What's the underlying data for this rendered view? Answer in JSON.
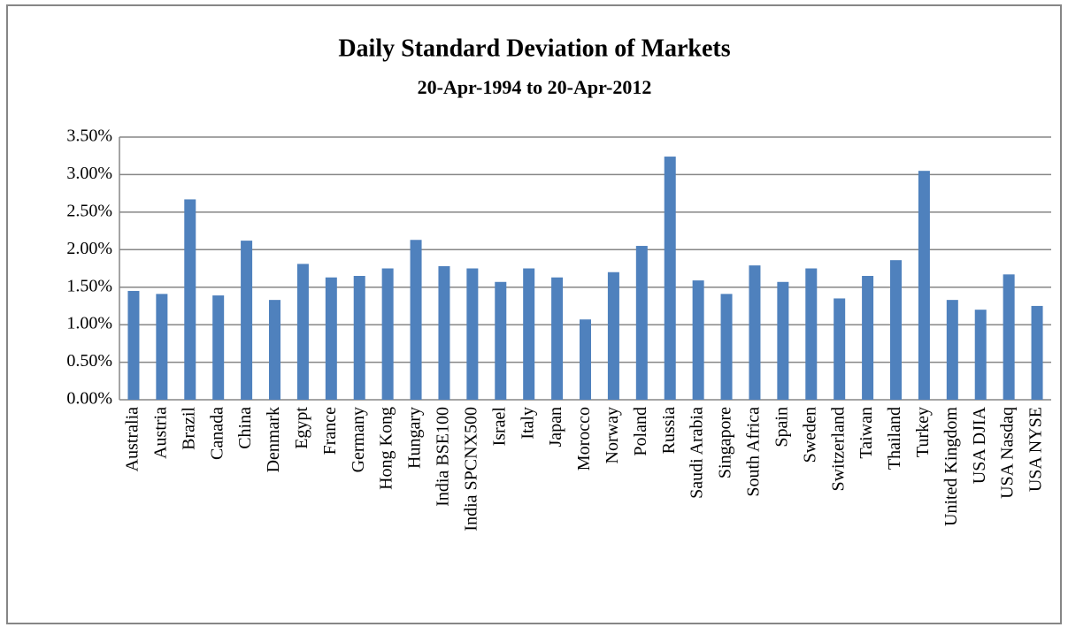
{
  "chart_data": {
    "type": "bar",
    "title": "Daily Standard Deviation of Markets",
    "subtitle": "20-Apr-1994 to 20-Apr-2012",
    "categories": [
      "Australia",
      "Austria",
      "Brazil",
      "Canada",
      "China",
      "Denmark",
      "Egypt",
      "France",
      "Germany",
      "Hong Kong",
      "Hungary",
      "India BSE100",
      "India SPCNX500",
      "Israel",
      "Italy",
      "Japan",
      "Morocco",
      "Norway",
      "Poland",
      "Russia",
      "Saudi Arabia",
      "Singapore",
      "South Africa",
      "Spain",
      "Sweden",
      "Switzerland",
      "Taiwan",
      "Thailand",
      "Turkey",
      "United Kingdom",
      "USA DJIA",
      "USA Nasdaq",
      "USA NYSE"
    ],
    "values": [
      1.45,
      1.41,
      2.67,
      1.39,
      2.12,
      1.33,
      1.81,
      1.63,
      1.65,
      1.75,
      2.13,
      1.78,
      1.75,
      1.57,
      1.75,
      1.63,
      1.07,
      1.7,
      2.05,
      3.24,
      1.59,
      1.41,
      1.79,
      1.57,
      1.75,
      1.35,
      1.65,
      1.86,
      3.05,
      1.33,
      1.2,
      1.67,
      1.25
    ],
    "color": "#4f81bd",
    "ylim": [
      0,
      3.5
    ],
    "yticks": [
      {
        "value": 0,
        "label": "0.00%"
      },
      {
        "value": 0.5,
        "label": "0.50%"
      },
      {
        "value": 1,
        "label": "1.00%"
      },
      {
        "value": 1.5,
        "label": "1.50%"
      },
      {
        "value": 2,
        "label": "2.00%"
      },
      {
        "value": 2.5,
        "label": "2.50%"
      },
      {
        "value": 3,
        "label": "3.00%"
      },
      {
        "value": 3.5,
        "label": "3.50%"
      }
    ],
    "grid": true
  }
}
